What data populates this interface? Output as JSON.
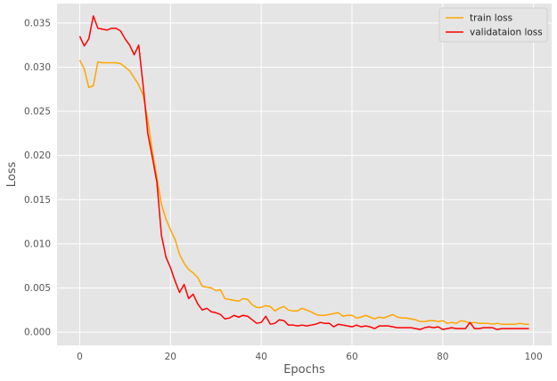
{
  "chart_data": {
    "type": "line",
    "title": "",
    "xlabel": "Epochs",
    "ylabel": "Loss",
    "xlim": [
      -5,
      104
    ],
    "ylim": [
      -0.0015,
      0.0372
    ],
    "xticks": [
      0,
      20,
      40,
      60,
      80,
      100
    ],
    "xtick_labels": [
      "0",
      "20",
      "40",
      "60",
      "80",
      "100"
    ],
    "yticks": [
      0.0,
      0.005,
      0.01,
      0.015,
      0.02,
      0.025,
      0.03,
      0.035
    ],
    "ytick_labels": [
      "0.000",
      "0.005",
      "0.010",
      "0.015",
      "0.020",
      "0.025",
      "0.030",
      "0.035"
    ],
    "grid": true,
    "legend_position": "top-right",
    "series": [
      {
        "name": "train loss",
        "color": "#ffa500",
        "x": [
          0,
          1,
          2,
          3,
          4,
          5,
          6,
          7,
          8,
          9,
          10,
          11,
          12,
          13,
          14,
          15,
          16,
          17,
          18,
          19,
          20,
          21,
          22,
          23,
          24,
          25,
          26,
          27,
          28,
          29,
          30,
          31,
          32,
          33,
          34,
          35,
          36,
          37,
          38,
          39,
          40,
          41,
          42,
          43,
          44,
          45,
          46,
          47,
          48,
          49,
          50,
          51,
          52,
          53,
          54,
          55,
          56,
          57,
          58,
          59,
          60,
          61,
          62,
          63,
          64,
          65,
          66,
          67,
          68,
          69,
          70,
          71,
          72,
          73,
          74,
          75,
          76,
          77,
          78,
          79,
          80,
          81,
          82,
          83,
          84,
          85,
          86,
          87,
          88,
          89,
          90,
          91,
          92,
          93,
          94,
          95,
          96,
          97,
          98,
          99
        ],
        "y": [
          0.0308,
          0.0298,
          0.0277,
          0.0279,
          0.0306,
          0.0305,
          0.0305,
          0.0305,
          0.0305,
          0.0304,
          0.03,
          0.0296,
          0.0288,
          0.028,
          0.0268,
          0.024,
          0.0205,
          0.0175,
          0.0145,
          0.0128,
          0.0116,
          0.0105,
          0.0088,
          0.0078,
          0.0071,
          0.0067,
          0.0062,
          0.0052,
          0.0051,
          0.005,
          0.0047,
          0.0048,
          0.0038,
          0.0037,
          0.0036,
          0.0035,
          0.0038,
          0.0037,
          0.0031,
          0.0028,
          0.0028,
          0.003,
          0.0029,
          0.0024,
          0.0027,
          0.0029,
          0.0025,
          0.0024,
          0.0024,
          0.0027,
          0.0025,
          0.0023,
          0.002,
          0.0019,
          0.0019,
          0.002,
          0.0021,
          0.0022,
          0.0018,
          0.0019,
          0.0019,
          0.0016,
          0.0017,
          0.0019,
          0.0017,
          0.0015,
          0.0017,
          0.0016,
          0.0018,
          0.002,
          0.0017,
          0.0016,
          0.0016,
          0.0015,
          0.0014,
          0.0012,
          0.0012,
          0.0013,
          0.0013,
          0.0012,
          0.0013,
          0.001,
          0.0011,
          0.001,
          0.0013,
          0.0012,
          0.001,
          0.0011,
          0.001,
          0.001,
          0.001,
          0.0009,
          0.001,
          0.0009,
          0.0009,
          0.0009,
          0.0009,
          0.001,
          0.0009,
          0.0009
        ]
      },
      {
        "name": "validataion loss",
        "color": "#ff0000",
        "x": [
          0,
          1,
          2,
          3,
          4,
          5,
          6,
          7,
          8,
          9,
          10,
          11,
          12,
          13,
          14,
          15,
          16,
          17,
          18,
          19,
          20,
          21,
          22,
          23,
          24,
          25,
          26,
          27,
          28,
          29,
          30,
          31,
          32,
          33,
          34,
          35,
          36,
          37,
          38,
          39,
          40,
          41,
          42,
          43,
          44,
          45,
          46,
          47,
          48,
          49,
          50,
          51,
          52,
          53,
          54,
          55,
          56,
          57,
          58,
          59,
          60,
          61,
          62,
          63,
          64,
          65,
          66,
          67,
          68,
          69,
          70,
          71,
          72,
          73,
          74,
          75,
          76,
          77,
          78,
          79,
          80,
          81,
          82,
          83,
          84,
          85,
          86,
          87,
          88,
          89,
          90,
          91,
          92,
          93,
          94,
          95,
          96,
          97,
          98,
          99
        ],
        "y": [
          0.0335,
          0.0324,
          0.0332,
          0.0358,
          0.0344,
          0.0343,
          0.0342,
          0.0344,
          0.0344,
          0.0341,
          0.0332,
          0.0325,
          0.0314,
          0.0325,
          0.0278,
          0.0225,
          0.0198,
          0.017,
          0.011,
          0.0085,
          0.0073,
          0.0058,
          0.0045,
          0.0054,
          0.0038,
          0.0043,
          0.0032,
          0.0025,
          0.0027,
          0.0023,
          0.0022,
          0.002,
          0.0015,
          0.0016,
          0.0019,
          0.0017,
          0.0019,
          0.0018,
          0.0014,
          0.001,
          0.0011,
          0.0018,
          0.0009,
          0.001,
          0.0014,
          0.0013,
          0.0008,
          0.0008,
          0.0007,
          0.0008,
          0.0007,
          0.0008,
          0.0009,
          0.0011,
          0.001,
          0.001,
          0.0006,
          0.0009,
          0.0008,
          0.0007,
          0.0006,
          0.0008,
          0.0006,
          0.0007,
          0.0006,
          0.0004,
          0.0007,
          0.0007,
          0.0007,
          0.0006,
          0.0005,
          0.0005,
          0.0005,
          0.0005,
          0.0004,
          0.0003,
          0.0005,
          0.0006,
          0.0005,
          0.0006,
          0.0003,
          0.0004,
          0.0005,
          0.0004,
          0.0004,
          0.0004,
          0.0011,
          0.0004,
          0.0004,
          0.0005,
          0.0005,
          0.0005,
          0.0003,
          0.0004,
          0.0004,
          0.0004,
          0.0004,
          0.0004,
          0.0004,
          0.0004
        ]
      }
    ]
  }
}
